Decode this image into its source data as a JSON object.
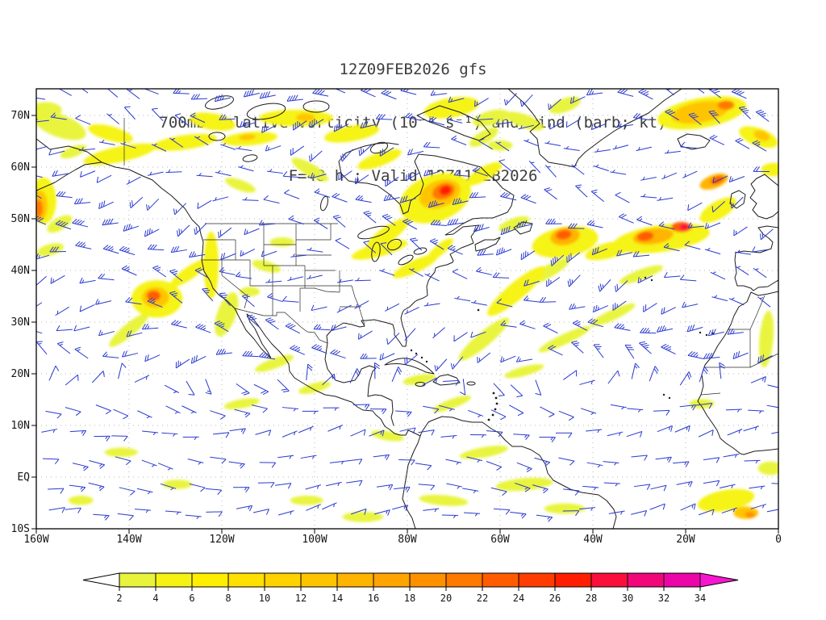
{
  "title": {
    "line1": "12Z09FEB2026 gfs",
    "line2": "700mb relative vorticity (10⁻⁵ s⁻¹) and wind (barb; kt)",
    "line3": "F=48 h ; Valid 12Z11FEB2026"
  },
  "axes": {
    "lat_labels": [
      "70N",
      "60N",
      "50N",
      "40N",
      "30N",
      "20N",
      "10N",
      "EQ",
      "10S"
    ],
    "lon_labels": [
      "160W",
      "140W",
      "120W",
      "100W",
      "80W",
      "60W",
      "40W",
      "20W",
      "0"
    ]
  },
  "chart_data": {
    "type": "heatmap",
    "title": "700mb relative vorticity (10^-5 s^-1) and wind (barb; kt)",
    "model_run": "12Z09FEB2026 gfs",
    "forecast": "F=48 h",
    "valid": "Valid 12Z11FEB2026",
    "projection": "latlon",
    "lon_range_deg": [
      -160,
      0
    ],
    "lat_range_deg": [
      -10,
      75
    ],
    "grid_spacing": {
      "lat_deg": 10,
      "lon_deg": 20
    },
    "colorbar": {
      "units": "10^-5 s^-1",
      "tick_values": [
        2,
        4,
        6,
        8,
        10,
        12,
        14,
        16,
        18,
        20,
        22,
        24,
        26,
        28,
        30,
        32,
        34
      ],
      "segment_colors": [
        "#e8f43c",
        "#f6f312",
        "#ffee00",
        "#ffe000",
        "#ffd200",
        "#ffc400",
        "#ffb400",
        "#ffa400",
        "#ff9000",
        "#ff7800",
        "#ff5c00",
        "#ff3c00",
        "#ff1e00",
        "#fa0f3c",
        "#f2077a",
        "#ec06a8"
      ],
      "under_color": "#ffffff",
      "over_color": "#f716cf"
    },
    "wind_barbs": {
      "color": "#2a3ad0",
      "units": "kt",
      "approx_grid_spacing_deg": 5
    },
    "vorticity_features_format": [
      "lon_deg",
      "lat_deg",
      "rx_deg",
      "ry_deg",
      "rotation_deg",
      "value_10^-5_s^-1"
    ],
    "vorticity_features": [
      [
        -155,
        68,
        6,
        2.2,
        20,
        3
      ],
      [
        -158,
        71,
        3.5,
        1.6,
        0,
        3
      ],
      [
        -144,
        66.5,
        5,
        1.4,
        15,
        5
      ],
      [
        -152,
        63,
        3,
        1,
        -20,
        3
      ],
      [
        -158.5,
        53.5,
        2.8,
        4.5,
        0,
        5
      ],
      [
        -159.2,
        52.5,
        1.6,
        3,
        0,
        13
      ],
      [
        -159.5,
        52,
        0.9,
        1.7,
        0,
        21
      ],
      [
        -155,
        49,
        3,
        1.2,
        -30,
        3
      ],
      [
        -157,
        44,
        3,
        1.1,
        -15,
        3
      ],
      [
        -142,
        62.5,
        8,
        1.5,
        -12,
        5
      ],
      [
        -128,
        64.8,
        7,
        1.4,
        -8,
        5
      ],
      [
        -114,
        65.5,
        6,
        1.3,
        -5,
        5
      ],
      [
        -114.5,
        65.8,
        1.8,
        0.6,
        -5,
        13
      ],
      [
        -122,
        68.8,
        5,
        1.6,
        10,
        5
      ],
      [
        -104,
        69.5,
        8,
        1.6,
        0,
        5
      ],
      [
        -102,
        69.6,
        2,
        0.8,
        0,
        13
      ],
      [
        -92,
        66.5,
        6,
        1.5,
        -10,
        5
      ],
      [
        -86,
        61.5,
        5,
        1.3,
        -20,
        5
      ],
      [
        -101,
        59.5,
        4.5,
        1.2,
        30,
        3
      ],
      [
        -116,
        56.5,
        3.5,
        1,
        20,
        3
      ],
      [
        -70.5,
        71.5,
        6,
        1.9,
        -10,
        5
      ],
      [
        -62,
        69.5,
        4,
        1.4,
        -15,
        3
      ],
      [
        -63.5,
        65.8,
        3.5,
        1.2,
        -30,
        3
      ],
      [
        -134,
        34.5,
        5.5,
        3.6,
        0,
        5
      ],
      [
        -134.3,
        34.8,
        2.9,
        2,
        0,
        13
      ],
      [
        -134.7,
        35.1,
        1.5,
        1,
        0,
        23
      ],
      [
        -140,
        28.5,
        5.5,
        1.2,
        -40,
        3
      ],
      [
        -127,
        39.5,
        5,
        1.2,
        -35,
        5
      ],
      [
        -122.3,
        41,
        1.6,
        6.5,
        0,
        5
      ],
      [
        -119,
        31.5,
        2,
        4.5,
        20,
        3
      ],
      [
        -110.4,
        40.8,
        3.2,
        1,
        15,
        3
      ],
      [
        -107,
        45.5,
        2.7,
        0.9,
        0,
        3
      ],
      [
        -114,
        35.9,
        2.2,
        0.9,
        0,
        3
      ],
      [
        -74,
        54,
        8,
        4.5,
        -20,
        5
      ],
      [
        -73,
        54.8,
        4.6,
        2.6,
        -20,
        13
      ],
      [
        -72.2,
        55.3,
        2.5,
        1.5,
        -20,
        21
      ],
      [
        -71.8,
        55.5,
        1.3,
        0.9,
        -20,
        27
      ],
      [
        -84.3,
        47,
        5.5,
        1.5,
        -35,
        5
      ],
      [
        -63.5,
        58.7,
        4.4,
        1.3,
        -30,
        5
      ],
      [
        -57,
        49,
        3.5,
        1.1,
        -20,
        3
      ],
      [
        -86,
        44,
        6.2,
        1.3,
        -15,
        5
      ],
      [
        -78.3,
        40.8,
        5.3,
        1.2,
        -25,
        5
      ],
      [
        -73,
        44,
        3.6,
        1,
        -40,
        5
      ],
      [
        -46,
        45.5,
        7.2,
        2.9,
        -10,
        5
      ],
      [
        -46,
        46.6,
        3.2,
        1.7,
        -10,
        15
      ],
      [
        -46.3,
        46.9,
        1.7,
        0.9,
        -10,
        23
      ],
      [
        -56.5,
        36,
        8,
        1.7,
        -40,
        5
      ],
      [
        -63.5,
        26.7,
        7,
        1.4,
        -40,
        3
      ],
      [
        -49.6,
        39.8,
        5.3,
        1.2,
        -30,
        3
      ],
      [
        -25.2,
        46.2,
        10.5,
        2.6,
        -8,
        5
      ],
      [
        -27,
        46.6,
        4.4,
        1.5,
        -8,
        15
      ],
      [
        -28.7,
        46.6,
        1.8,
        0.9,
        -8,
        23
      ],
      [
        -20.9,
        48.4,
        2.2,
        1,
        0,
        23
      ],
      [
        -20.3,
        48.4,
        1,
        0.6,
        0,
        29
      ],
      [
        -36.5,
        43.9,
        5.3,
        1.5,
        -15,
        5
      ],
      [
        -13,
        51.7,
        4.4,
        1.7,
        -30,
        5
      ],
      [
        -13.9,
        57.2,
        3.2,
        1.3,
        -20,
        15
      ],
      [
        -13.2,
        57.5,
        1.5,
        0.7,
        -20,
        23
      ],
      [
        -29.6,
        39.2,
        5,
        1,
        -20,
        3
      ],
      [
        -16.5,
        70.5,
        9.7,
        2.9,
        -10,
        5
      ],
      [
        -16.9,
        70.6,
        6.2,
        2,
        -10,
        13
      ],
      [
        -11.3,
        72,
        1.8,
        0.9,
        0,
        21
      ],
      [
        -4.3,
        65.8,
        4.4,
        1.7,
        20,
        5
      ],
      [
        -3.6,
        66.1,
        1.8,
        0.9,
        20,
        13
      ],
      [
        -1,
        59.5,
        2.7,
        1.3,
        0,
        5
      ],
      [
        -54.8,
        68.9,
        4.4,
        1.3,
        20,
        3
      ],
      [
        -46,
        72,
        3.6,
        1.3,
        -20,
        3
      ],
      [
        -60,
        64.2,
        2.7,
        1,
        0,
        3
      ],
      [
        -46.1,
        26.7,
        6.2,
        1,
        -25,
        3
      ],
      [
        -35.7,
        31.4,
        5.3,
        1,
        -25,
        3
      ],
      [
        -54.8,
        20.5,
        4.4,
        0.9,
        -15,
        3
      ],
      [
        -77.4,
        18.9,
        3.6,
        0.9,
        -10,
        3
      ],
      [
        -70.4,
        14.2,
        4.4,
        0.9,
        -20,
        3
      ],
      [
        -84.3,
        8,
        3.6,
        0.9,
        10,
        3
      ],
      [
        -63.5,
        4.8,
        5.3,
        1,
        -10,
        3
      ],
      [
        -54.8,
        -1.4,
        6.2,
        1.2,
        -5,
        3
      ],
      [
        -72.2,
        -4.5,
        5.3,
        1,
        5,
        3
      ],
      [
        -89.6,
        -7.7,
        4.4,
        1,
        0,
        3
      ],
      [
        -101.7,
        -4.5,
        3.6,
        0.9,
        0,
        3
      ],
      [
        -46.1,
        -6.1,
        4.4,
        1,
        0,
        3
      ],
      [
        -11.3,
        -4.5,
        6.2,
        2,
        -10,
        5
      ],
      [
        -7,
        -6.9,
        2.7,
        1.2,
        0,
        13
      ],
      [
        -6.1,
        -7.3,
        1.1,
        0.6,
        0,
        19
      ],
      [
        -1.7,
        1.7,
        2.7,
        1.3,
        0,
        3
      ],
      [
        -2.6,
        26.7,
        1.5,
        5.5,
        5,
        3
      ],
      [
        -16.5,
        14.2,
        2.7,
        0.9,
        0,
        3
      ],
      [
        -108.7,
        22,
        4.4,
        1,
        -20,
        3
      ],
      [
        -100,
        17.3,
        3.6,
        0.9,
        -15,
        3
      ],
      [
        -115.7,
        14.2,
        3.9,
        0.9,
        -10,
        3
      ],
      [
        -141.7,
        4.8,
        3.6,
        0.9,
        0,
        3
      ],
      [
        -129.6,
        -1.4,
        3.2,
        0.9,
        0,
        3
      ],
      [
        -150.4,
        -4.5,
        2.7,
        0.9,
        0,
        3
      ]
    ]
  },
  "colors": {
    "coastline": "#1c1c1c",
    "grid": "#b4b4b4",
    "frame": "#000000",
    "title_text": "#3e3e3e",
    "axis_text": "#151515",
    "background": "#ffffff"
  }
}
